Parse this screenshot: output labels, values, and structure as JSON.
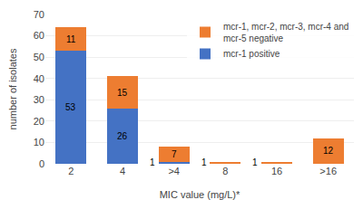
{
  "chart_data": {
    "type": "bar",
    "stacked": true,
    "xlabel": "MIC value (mg/L)*",
    "ylabel": "number of isolates",
    "categories": [
      "2",
      "4",
      ">4",
      "8",
      "16",
      ">16"
    ],
    "series": [
      {
        "name": "mcr-1 positive",
        "color": "#4472C4",
        "values": [
          53,
          26,
          1,
          0,
          0,
          0
        ]
      },
      {
        "name": "mcr-1, mcr-2, mcr-3, mcr-4 and\nmcr-5 negative",
        "color": "#ED7D31",
        "values": [
          11,
          15,
          7,
          1,
          1,
          12
        ]
      }
    ],
    "ylim": [
      0,
      70
    ],
    "yticks": [
      0,
      10,
      20,
      30,
      40,
      50,
      60,
      70
    ],
    "grid": true,
    "legend": "upper right",
    "data_labels": true
  }
}
